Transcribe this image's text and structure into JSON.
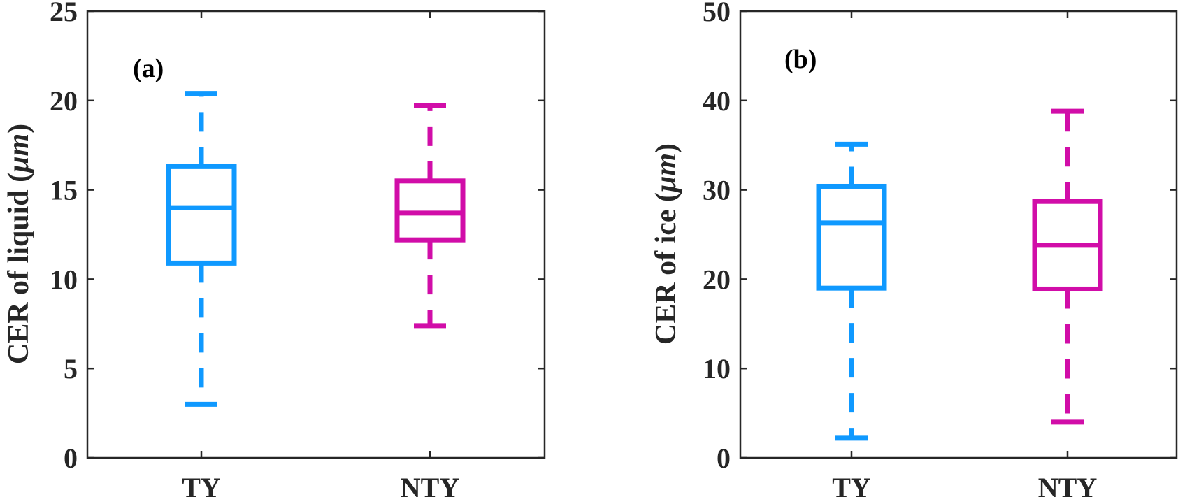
{
  "chart_data": [
    {
      "type": "box",
      "panel_label": "(a)",
      "ylabel_pre": "CER of liquid (",
      "ylabel_unit": "μm",
      "ylabel_post": ")",
      "ylim": [
        0,
        25
      ],
      "yticks": [
        0,
        5,
        10,
        15,
        20,
        25
      ],
      "categories": [
        "TY",
        "NTY"
      ],
      "boxes": [
        {
          "category": "TY",
          "color": "#0F99FF",
          "whisker_low": 3.0,
          "q1": 10.9,
          "median": 14.0,
          "q3": 16.3,
          "whisker_high": 20.4
        },
        {
          "category": "NTY",
          "color": "#D10DA8",
          "whisker_low": 7.4,
          "q1": 12.2,
          "median": 13.7,
          "q3": 15.5,
          "whisker_high": 19.7
        }
      ]
    },
    {
      "type": "box",
      "panel_label": "(b)",
      "ylabel_pre": "CER of ice (",
      "ylabel_unit": "μm",
      "ylabel_post": ")",
      "ylim": [
        0,
        50
      ],
      "yticks": [
        0,
        10,
        20,
        30,
        40,
        50
      ],
      "categories": [
        "TY",
        "NTY"
      ],
      "boxes": [
        {
          "category": "TY",
          "color": "#0F99FF",
          "whisker_low": 2.2,
          "q1": 19.0,
          "median": 26.3,
          "q3": 30.4,
          "whisker_high": 35.1
        },
        {
          "category": "NTY",
          "color": "#D10DA8",
          "whisker_low": 4.0,
          "q1": 18.9,
          "median": 23.8,
          "q3": 28.7,
          "whisker_high": 38.8
        }
      ]
    }
  ]
}
